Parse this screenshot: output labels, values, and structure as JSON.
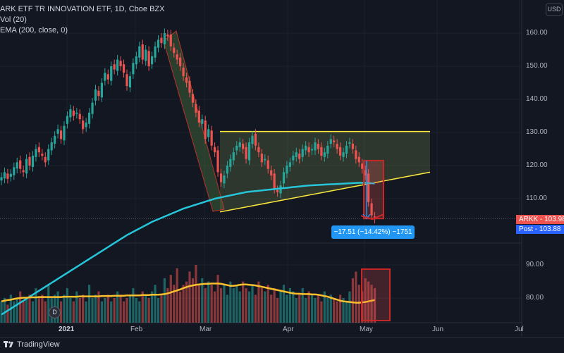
{
  "legend": {
    "line1": "ARK ETF TR INNOVATION ETF, 1D, Cboe BZX",
    "line2": "Vol (20)",
    "line3": "EMA (200, close, 0)"
  },
  "currency_button": "USD",
  "price_labels": [
    "160.00",
    "150.00",
    "140.00",
    "130.00",
    "120.00",
    "110.00"
  ],
  "volume_labels": [
    "90.00",
    "80.00"
  ],
  "time_labels": [
    "2021",
    "Feb",
    "Mar",
    "Apr",
    "May",
    "Jun",
    "Jul"
  ],
  "ticker_tag": "ARKK - 103.98",
  "post_tag": "Post - 103.88",
  "measure_label": "−17.51 (−14.42%) −1751",
  "dividend_badge": "D",
  "footer_brand": "TradingView",
  "colors": {
    "up": "#26a69a",
    "down": "#ef5350",
    "ema": "#26c6da",
    "vol_ma": "#fbc02d",
    "pattern": "#ffeb3b",
    "measure": "#2196f3",
    "background": "#131722"
  },
  "chart_data": {
    "type": "candlestick",
    "symbol": "ARKK",
    "interval": "1D",
    "exchange": "Cboe BZX",
    "y_range_price": [
      101,
      165
    ],
    "y_range_volume": [
      73,
      95
    ],
    "last_price": 103.98,
    "post_price": 103.88,
    "close_series": [
      116.5,
      118,
      116,
      117.5,
      119.5,
      121,
      119,
      118,
      122,
      120,
      123,
      125,
      124,
      123,
      121,
      125,
      127,
      129,
      131,
      128,
      132,
      135,
      137,
      135,
      136,
      134,
      131,
      133,
      136,
      139,
      143,
      141,
      145,
      148,
      146,
      150,
      149,
      152,
      150,
      148,
      144,
      147,
      151,
      153,
      156,
      152,
      155,
      150,
      153,
      156,
      158,
      157,
      160,
      159,
      156,
      154,
      152,
      150,
      147,
      145,
      142,
      139,
      136,
      133,
      134,
      128,
      131,
      126,
      124,
      118,
      115,
      117,
      120,
      122,
      124,
      126,
      127,
      125,
      122,
      127,
      129,
      126,
      124,
      121,
      122,
      119,
      117,
      113,
      112,
      114,
      118,
      120,
      121,
      123,
      124,
      122,
      125,
      126,
      124,
      125,
      127,
      125,
      123,
      124,
      126,
      128,
      127,
      125,
      123,
      124,
      126,
      127,
      125,
      122,
      121,
      119,
      117,
      109,
      105,
      103.98
    ],
    "ema200": [
      75,
      75.6,
      76.2,
      76.8,
      77.4,
      78,
      78.6,
      79.2,
      79.8,
      80.4,
      81,
      81.6,
      82.2,
      82.8,
      83.4,
      84,
      84.6,
      85.2,
      85.8,
      86.4,
      87,
      87.6,
      88.2,
      88.8,
      89.4,
      90,
      90.6,
      91.2,
      91.8,
      92.4,
      93,
      93.6,
      94.2,
      94.8,
      95.4,
      96,
      96.6,
      97.2,
      97.8,
      98.4,
      99,
      99.5,
      100,
      100.5,
      101,
      101.5,
      102,
      102.5,
      103,
      103.4,
      103.8,
      104.2,
      104.6,
      105,
      105.4,
      105.8,
      106.2,
      106.6,
      107,
      107.3,
      107.6,
      107.9,
      108.2,
      108.5,
      108.8,
      109.1,
      109.4,
      109.7,
      110,
      110.2,
      110.4,
      110.6,
      110.8,
      111,
      111.2,
      111.4,
      111.6,
      111.8,
      112,
      112.1,
      112.2,
      112.3,
      112.4,
      112.5,
      112.6,
      112.7,
      112.8,
      112.9,
      113,
      113.1,
      113.2,
      113.3,
      113.4,
      113.5,
      113.6,
      113.7,
      113.8,
      113.9,
      114,
      114.05,
      114.1,
      114.15,
      114.2,
      114.25,
      114.3,
      114.35,
      114.4,
      114.45,
      114.5,
      114.55,
      114.6,
      114.65,
      114.7,
      114.75,
      114.8,
      114.8,
      114.75,
      114.7,
      114.65,
      114.6
    ],
    "volume_ma": [
      79,
      79.2,
      79.4,
      79.5,
      79.7,
      79.9,
      80,
      80.1,
      80.1,
      80.2,
      80.2,
      80.2,
      80.3,
      80.3,
      80.3,
      80.3,
      80.3,
      80.3,
      80.3,
      80.3,
      80.4,
      80.4,
      80.4,
      80.4,
      80.4,
      80.5,
      80.5,
      80.5,
      80.5,
      80.5,
      80.5,
      80.5,
      80.6,
      80.6,
      80.6,
      80.6,
      80.7,
      80.7,
      80.7,
      80.7,
      80.8,
      80.8,
      80.8,
      80.8,
      80.8,
      80.9,
      80.9,
      80.9,
      81,
      81,
      81,
      81.1,
      81.2,
      81.4,
      81.7,
      82,
      82.3,
      82.6,
      83,
      83.3,
      83.6,
      83.8,
      84,
      84.1,
      84.2,
      84.3,
      84.3,
      84.4,
      84.4,
      84.4,
      84.3,
      84.1,
      83.9,
      83.7,
      83.7,
      83.8,
      84,
      84.1,
      84.1,
      84,
      83.9,
      83.8,
      83.6,
      83.4,
      83.2,
      83,
      82.8,
      82.6,
      82.4,
      82.2,
      82,
      81.8,
      81.6,
      81.4,
      81.3,
      81.3,
      81.2,
      81.2,
      81.2,
      81.1,
      81.1,
      81,
      80.8,
      80.6,
      80.4,
      80.1,
      79.8,
      79.5,
      79.2,
      79,
      78.9,
      78.8,
      78.7,
      78.6,
      78.6,
      78.7,
      78.8,
      79,
      79.2,
      79.4
    ],
    "volume_bars": [
      79,
      80,
      78,
      81,
      79,
      80,
      82,
      79,
      80,
      81,
      79,
      83,
      80,
      81,
      79,
      84,
      80,
      81,
      82,
      79,
      81,
      83,
      80,
      79,
      82,
      80,
      81,
      79,
      84,
      80,
      81,
      82,
      79,
      80,
      81,
      79,
      80,
      82,
      81,
      79,
      80,
      81,
      83,
      80,
      79,
      82,
      81,
      80,
      82,
      84,
      80,
      81,
      86,
      83,
      87,
      84,
      89,
      82,
      84,
      85,
      88,
      86,
      90,
      84,
      86,
      83,
      85,
      84,
      82,
      87,
      83,
      84,
      81,
      85,
      83,
      84,
      82,
      85,
      83,
      82,
      84,
      81,
      85,
      83,
      82,
      84,
      81,
      83,
      80,
      82,
      84,
      81,
      83,
      82,
      80,
      81,
      83,
      80,
      82,
      81,
      80,
      81,
      79,
      82,
      80,
      81,
      80,
      79,
      81,
      80,
      79,
      82,
      86,
      88,
      84,
      82,
      86,
      85,
      84,
      83
    ],
    "annotations": {
      "triangle_top": 130.3,
      "triangle_bottom_start": 106,
      "triangle_bottom_end": 118,
      "measure_from": 121.5,
      "measure_to": 104
    }
  }
}
